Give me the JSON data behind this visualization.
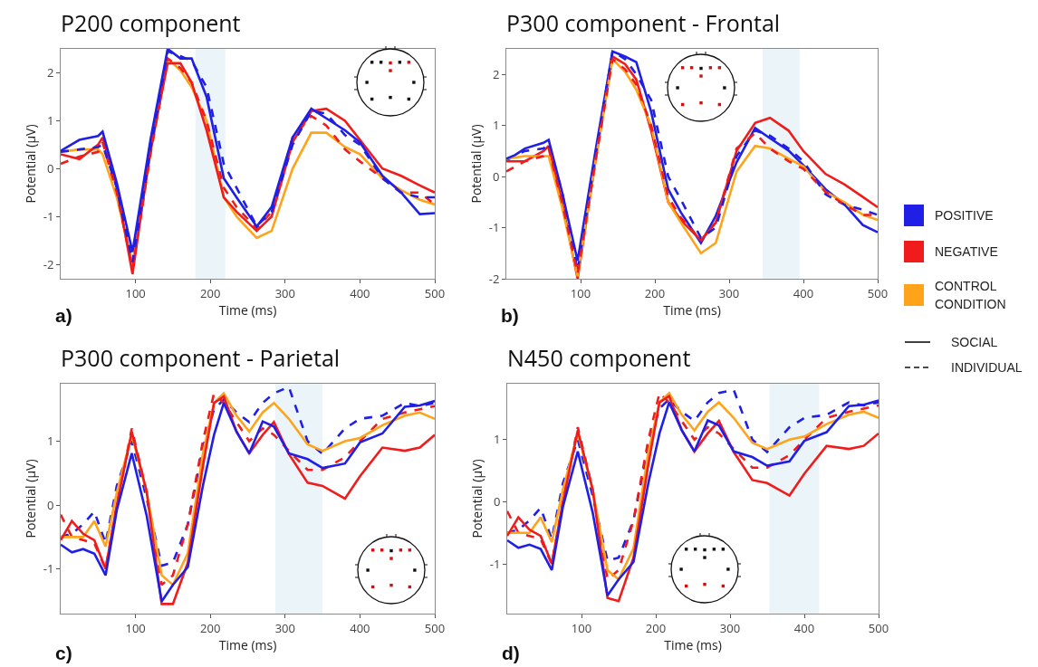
{
  "chart_data": [
    {
      "type": "line",
      "title": "P200 component",
      "xlabel": "Time (ms)",
      "ylabel": "Potential (μV)",
      "annotations": [
        "a)"
      ],
      "x": [
        0,
        25,
        50,
        56,
        75,
        96,
        120,
        143,
        160,
        175,
        195,
        218,
        235,
        262,
        282,
        310,
        335,
        355,
        380,
        400,
        430,
        455,
        480,
        500
      ],
      "xlim": [
        0,
        500
      ],
      "xticks": [
        100,
        200,
        300,
        400,
        500
      ],
      "ylim": [
        -2.3,
        2.5
      ],
      "yticks": [
        -2,
        -1,
        0,
        1,
        2
      ],
      "bands": [
        {
          "axis": "x",
          "from": 180,
          "to": 220,
          "color": "#eaf4f9"
        }
      ],
      "series": [
        {
          "color": "#ffa31a",
          "line_style": "solid",
          "values": [
            0.35,
            0.4,
            0.4,
            0.3,
            -0.6,
            -2.0,
            0.3,
            2.3,
            2.05,
            1.7,
            1.0,
            -0.6,
            -1.0,
            -1.45,
            -1.3,
            0.0,
            0.75,
            0.75,
            0.45,
            0.3,
            -0.2,
            -0.45,
            -0.65,
            -0.75
          ]
        },
        {
          "color": "#f01c1c",
          "line_style": "dashed",
          "values": [
            0.1,
            0.25,
            0.35,
            0.55,
            -0.5,
            -2.1,
            0.3,
            2.3,
            2.1,
            1.8,
            1.0,
            -0.4,
            -0.8,
            -1.25,
            -0.9,
            0.65,
            1.1,
            0.9,
            0.4,
            0.15,
            -0.2,
            -0.5,
            -0.5,
            -0.75
          ]
        },
        {
          "color": "#f01c1c",
          "line_style": "solid",
          "values": [
            0.3,
            0.2,
            0.5,
            0.65,
            -0.4,
            -2.2,
            0.4,
            2.2,
            2.2,
            1.8,
            0.8,
            -0.6,
            -0.9,
            -1.3,
            -1.0,
            0.55,
            1.2,
            1.25,
            1.0,
            0.6,
            0.0,
            -0.15,
            -0.35,
            -0.5
          ]
        },
        {
          "color": "#1f1fe6",
          "line_style": "dashed",
          "values": [
            0.35,
            0.4,
            0.45,
            0.5,
            -0.4,
            -1.95,
            0.4,
            2.45,
            2.35,
            2.25,
            1.7,
            0.1,
            -0.4,
            -1.2,
            -0.9,
            0.5,
            1.2,
            1.15,
            0.7,
            0.5,
            -0.2,
            -0.5,
            -0.6,
            -0.6
          ]
        },
        {
          "color": "#1f1fe6",
          "line_style": "solid",
          "values": [
            0.37,
            0.6,
            0.68,
            0.77,
            -0.3,
            -1.74,
            0.6,
            2.5,
            2.3,
            2.3,
            1.5,
            -0.2,
            -0.6,
            -1.21,
            -0.8,
            0.65,
            1.25,
            1.05,
            0.8,
            0.55,
            -0.15,
            -0.5,
            -0.95,
            -0.93
          ]
        }
      ]
    },
    {
      "type": "line",
      "title": "P300 component - Frontal",
      "xlabel": "Time (ms)",
      "ylabel": "Potential (μV)",
      "annotations": [
        "b)",
        "SOCIAL",
        "INDIVIDUAL"
      ],
      "legend": "right",
      "x": [
        0,
        25,
        50,
        57,
        75,
        96,
        120,
        143,
        160,
        175,
        195,
        218,
        235,
        262,
        282,
        310,
        335,
        355,
        380,
        400,
        430,
        455,
        480,
        500
      ],
      "xlim": [
        0,
        500
      ],
      "xticks": [
        100,
        200,
        300,
        400,
        500
      ],
      "ylim": [
        -2,
        2.5
      ],
      "yticks": [
        -2,
        -1,
        0,
        1,
        2
      ],
      "bands": [
        {
          "axis": "x",
          "from": 345,
          "to": 395,
          "color": "#eaf4f9"
        }
      ],
      "series": [
        {
          "name": "POSITIVE",
          "color": "#1f1fe6",
          "line_style": "solid",
          "values": [
            0.31,
            0.55,
            0.66,
            0.72,
            -0.3,
            -1.65,
            0.5,
            2.45,
            2.35,
            2.24,
            1.27,
            -0.25,
            -0.7,
            -1.3,
            -0.77,
            0.28,
            0.95,
            0.75,
            0.51,
            0.22,
            -0.25,
            -0.54,
            -0.95,
            -1.09
          ]
        },
        {
          "name": "NEGATIVE",
          "color": "#f01c1c",
          "line_style": "solid",
          "values": [
            0.3,
            0.3,
            0.5,
            0.6,
            -0.5,
            -2.0,
            0.3,
            2.35,
            2.2,
            1.9,
            0.9,
            -0.5,
            -0.85,
            -1.25,
            -0.9,
            0.5,
            1.05,
            1.15,
            0.9,
            0.5,
            0.05,
            -0.15,
            -0.4,
            -0.6
          ]
        },
        {
          "name": "CONTROL CONDITION",
          "color": "#ffa31a",
          "line_style": "solid",
          "values": [
            0.35,
            0.4,
            0.4,
            0.4,
            -0.6,
            -1.95,
            0.3,
            2.3,
            2.05,
            1.7,
            1.0,
            -0.5,
            -0.9,
            -1.5,
            -1.3,
            0.1,
            0.6,
            0.55,
            0.35,
            0.2,
            -0.3,
            -0.5,
            -0.75,
            -0.85
          ]
        },
        {
          "color": "#1f1fe6",
          "line_style": "dashed",
          "values": [
            0.35,
            0.5,
            0.55,
            0.65,
            -0.3,
            -1.85,
            0.4,
            2.45,
            2.3,
            2.0,
            1.5,
            0.0,
            -0.45,
            -1.2,
            -1.0,
            0.4,
            0.9,
            0.8,
            0.55,
            0.3,
            -0.35,
            -0.55,
            -0.65,
            -0.75
          ]
        },
        {
          "color": "#f01c1c",
          "line_style": "dashed",
          "values": [
            0.1,
            0.3,
            0.4,
            0.55,
            -0.5,
            -1.9,
            0.3,
            2.3,
            2.1,
            1.8,
            1.0,
            -0.4,
            -0.8,
            -1.25,
            -0.9,
            0.55,
            0.85,
            0.55,
            0.3,
            0.15,
            -0.3,
            -0.55,
            -0.75,
            -0.75
          ]
        }
      ]
    },
    {
      "type": "line",
      "title": "P300 component - Parietal",
      "xlabel": "Time (ms)",
      "ylabel": "Potential (μV)",
      "annotations": [
        "c)"
      ],
      "x": [
        0,
        15,
        30,
        45,
        60,
        75,
        95,
        115,
        135,
        150,
        170,
        190,
        205,
        218,
        235,
        252,
        270,
        285,
        305,
        330,
        350,
        380,
        400,
        430,
        460,
        480,
        500
      ],
      "xlim": [
        0,
        500
      ],
      "xticks": [
        100,
        200,
        300,
        400,
        500
      ],
      "ylim": [
        -1.7,
        1.9
      ],
      "yticks": [
        -1,
        0,
        1
      ],
      "bands": [
        {
          "axis": "x",
          "from": 287,
          "to": 350,
          "color": "#eaf4f9"
        }
      ],
      "series": [
        {
          "color": "#1f1fe6",
          "line_style": "dashed",
          "values": [
            -0.5,
            -0.45,
            -0.3,
            -0.1,
            -0.6,
            0.3,
            1.0,
            0.1,
            -0.95,
            -0.9,
            -0.3,
            0.9,
            1.5,
            1.65,
            1.45,
            1.3,
            1.6,
            1.75,
            1.85,
            1.0,
            0.8,
            1.2,
            1.35,
            1.4,
            1.6,
            1.55,
            1.6
          ]
        },
        {
          "color": "#f01c1c",
          "line_style": "dashed",
          "values": [
            -0.15,
            -0.5,
            -0.55,
            -0.6,
            -1.0,
            0.0,
            1.2,
            0.2,
            -1.25,
            -1.1,
            -0.3,
            1.0,
            1.75,
            1.6,
            1.3,
            1.0,
            1.2,
            1.1,
            0.85,
            0.55,
            0.55,
            0.75,
            1.0,
            1.35,
            1.45,
            1.5,
            1.55
          ]
        },
        {
          "color": "#ffa31a",
          "line_style": "solid",
          "values": [
            -0.5,
            -0.5,
            -0.5,
            -0.25,
            -0.65,
            0.2,
            1.1,
            0.2,
            -1.1,
            -1.25,
            -0.75,
            0.8,
            1.6,
            1.75,
            1.4,
            1.15,
            1.45,
            1.6,
            1.35,
            0.95,
            0.85,
            1.0,
            1.05,
            1.25,
            1.4,
            1.45,
            1.35
          ]
        },
        {
          "color": "#f01c1c",
          "line_style": "solid",
          "values": [
            -0.55,
            -0.25,
            -0.45,
            -0.55,
            -1.0,
            0.0,
            1.15,
            0.2,
            -1.55,
            -1.55,
            -0.9,
            0.6,
            1.6,
            1.7,
            1.15,
            0.81,
            1.1,
            1.3,
            0.8,
            0.35,
            0.3,
            0.1,
            0.45,
            0.9,
            0.85,
            0.9,
            1.1
          ]
        },
        {
          "color": "#1f1fe6",
          "line_style": "solid",
          "values": [
            -0.62,
            -0.74,
            -0.69,
            -0.76,
            -1.1,
            -0.08,
            0.81,
            -0.17,
            -1.51,
            -1.25,
            -0.97,
            0.3,
            1.1,
            1.6,
            1.15,
            0.81,
            1.31,
            1.23,
            0.81,
            0.72,
            0.58,
            0.65,
            0.98,
            1.12,
            1.54,
            1.56,
            1.63
          ]
        }
      ]
    },
    {
      "type": "line",
      "title": "N450 component",
      "xlabel": "Time (ms)",
      "ylabel": "Potential (μV)",
      "annotations": [
        "d)"
      ],
      "x": [
        0,
        15,
        30,
        45,
        60,
        75,
        95,
        115,
        135,
        150,
        170,
        190,
        205,
        218,
        235,
        252,
        270,
        285,
        305,
        330,
        350,
        380,
        400,
        430,
        460,
        480,
        500
      ],
      "xlim": [
        0,
        500
      ],
      "xticks": [
        100,
        200,
        300,
        400,
        500
      ],
      "ylim": [
        -1.8,
        1.9
      ],
      "yticks": [
        -1,
        0,
        1
      ],
      "bands": [
        {
          "axis": "x",
          "from": 353,
          "to": 420,
          "color": "#eaf4f9"
        }
      ],
      "series": [
        {
          "color": "#1f1fe6",
          "line_style": "dashed",
          "values": [
            -0.5,
            -0.45,
            -0.3,
            -0.1,
            -0.6,
            0.3,
            1.0,
            0.1,
            -0.95,
            -0.9,
            -0.3,
            0.9,
            1.5,
            1.65,
            1.45,
            1.3,
            1.6,
            1.75,
            1.8,
            1.0,
            0.8,
            1.2,
            1.35,
            1.4,
            1.6,
            1.55,
            1.6
          ]
        },
        {
          "color": "#f01c1c",
          "line_style": "dashed",
          "values": [
            -0.15,
            -0.5,
            -0.55,
            -0.6,
            -1.0,
            0.0,
            1.2,
            0.2,
            -1.25,
            -1.1,
            -0.3,
            1.0,
            1.75,
            1.6,
            1.3,
            1.0,
            1.2,
            1.1,
            0.85,
            0.55,
            0.55,
            0.75,
            1.0,
            1.35,
            1.45,
            1.5,
            1.55
          ]
        },
        {
          "color": "#ffa31a",
          "line_style": "solid",
          "values": [
            -0.5,
            -0.5,
            -0.5,
            -0.25,
            -0.65,
            0.2,
            1.1,
            0.2,
            -1.1,
            -1.25,
            -0.75,
            0.8,
            1.6,
            1.75,
            1.4,
            1.15,
            1.45,
            1.6,
            1.35,
            0.95,
            0.85,
            1.0,
            1.05,
            1.25,
            1.4,
            1.45,
            1.35
          ]
        },
        {
          "color": "#f01c1c",
          "line_style": "solid",
          "values": [
            -0.55,
            -0.25,
            -0.45,
            -0.55,
            -1.0,
            0.0,
            1.15,
            0.2,
            -1.55,
            -1.6,
            -0.9,
            0.6,
            1.6,
            1.7,
            1.15,
            0.81,
            1.1,
            1.3,
            0.8,
            0.35,
            0.3,
            0.1,
            0.45,
            0.9,
            0.85,
            0.9,
            1.1
          ]
        },
        {
          "color": "#1f1fe6",
          "line_style": "solid",
          "values": [
            -0.62,
            -0.74,
            -0.69,
            -0.76,
            -1.1,
            -0.08,
            0.81,
            -0.17,
            -1.51,
            -1.25,
            -0.97,
            0.3,
            1.1,
            1.6,
            1.15,
            0.81,
            1.31,
            1.23,
            0.81,
            0.72,
            0.58,
            0.65,
            0.98,
            1.12,
            1.54,
            1.56,
            1.63
          ]
        }
      ]
    }
  ]
}
